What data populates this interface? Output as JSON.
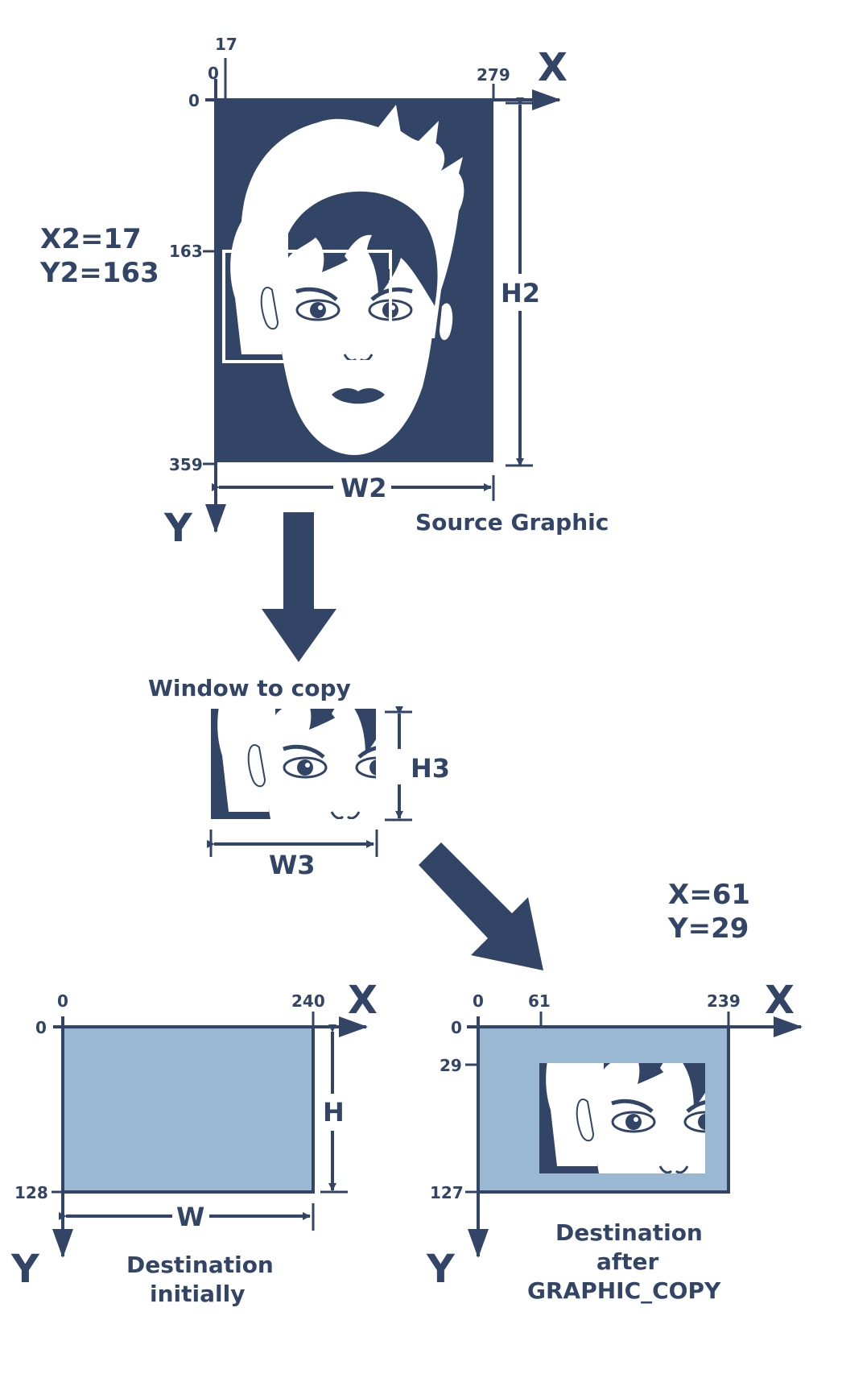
{
  "colors": {
    "navy": "#334566",
    "light_blue": "#9ab8d2",
    "white": "#ffffff"
  },
  "source": {
    "caption": "Source Graphic",
    "coords_line1": "X2=17",
    "coords_line2": "Y2=163",
    "x_axis_label": "X",
    "y_axis_label": "Y",
    "x_ticks": {
      "start": "0",
      "offset": "17",
      "end": "279"
    },
    "y_ticks": {
      "start": "0",
      "offset": "163",
      "end": "359"
    },
    "width_label": "W2",
    "height_label": "H2"
  },
  "window": {
    "caption": "Window to copy",
    "width_label": "W3",
    "height_label": "H3"
  },
  "destination_initial": {
    "caption_line1": "Destination",
    "caption_line2": "initially",
    "x_axis_label": "X",
    "y_axis_label": "Y",
    "x_ticks": {
      "start": "0",
      "end": "240"
    },
    "y_ticks": {
      "start": "0",
      "end": "128"
    },
    "width_label": "W",
    "height_label": "H"
  },
  "destination_after": {
    "caption_line1": "Destination",
    "caption_line2": "after",
    "caption_line3": "GRAPHIC_COPY",
    "coords_line1": "X=61",
    "coords_line2": "Y=29",
    "x_axis_label": "X",
    "y_axis_label": "Y",
    "x_ticks": {
      "start": "0",
      "offset": "61",
      "end": "239"
    },
    "y_ticks": {
      "start": "0",
      "offset": "29",
      "end": "127"
    }
  }
}
